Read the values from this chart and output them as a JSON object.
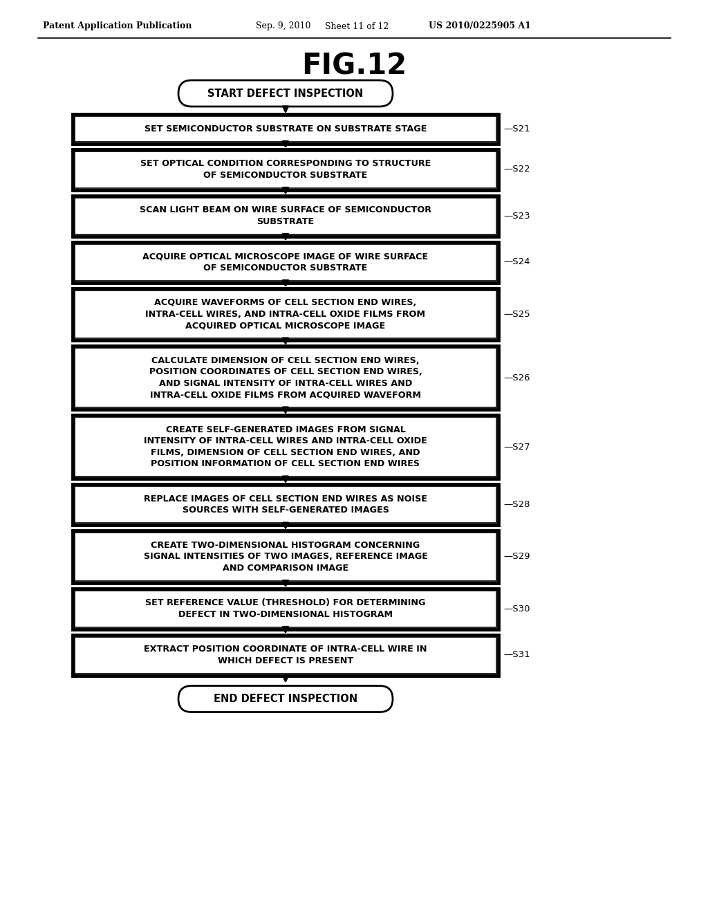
{
  "title": "FIG.12",
  "header_left": "Patent Application Publication",
  "header_mid": "Sep. 9, 2010   Sheet 11 of 12",
  "header_right": "US 2010/0225905 A1",
  "background_color": "#ffffff",
  "text_color": "#000000",
  "start_label": "START DEFECT INSPECTION",
  "end_label": "END DEFECT INSPECTION",
  "fig_width": 10.24,
  "fig_height": 13.2,
  "dpi": 100,
  "steps": [
    {
      "label": "SET SEMICONDUCTOR SUBSTRATE ON SUBSTRATE STAGE",
      "step": "S21",
      "nlines": 1
    },
    {
      "label": "SET OPTICAL CONDITION CORRESPONDING TO STRUCTURE\nOF SEMICONDUCTOR SUBSTRATE",
      "step": "S22",
      "nlines": 2
    },
    {
      "label": "SCAN LIGHT BEAM ON WIRE SURFACE OF SEMICONDUCTOR\nSUBSTRATE",
      "step": "S23",
      "nlines": 2
    },
    {
      "label": "ACQUIRE OPTICAL MICROSCOPE IMAGE OF WIRE SURFACE\nOF SEMICONDUCTOR SUBSTRATE",
      "step": "S24",
      "nlines": 2
    },
    {
      "label": "ACQUIRE WAVEFORMS OF CELL SECTION END WIRES,\nINTRA-CELL WIRES, AND INTRA-CELL OXIDE FILMS FROM\nACQUIRED OPTICAL MICROSCOPE IMAGE",
      "step": "S25",
      "nlines": 3
    },
    {
      "label": "CALCULATE DIMENSION OF CELL SECTION END WIRES,\nPOSITION COORDINATES OF CELL SECTION END WIRES,\nAND SIGNAL INTENSITY OF INTRA-CELL WIRES AND\nINTRA-CELL OXIDE FILMS FROM ACQUIRED WAVEFORM",
      "step": "S26",
      "nlines": 4
    },
    {
      "label": "CREATE SELF-GENERATED IMAGES FROM SIGNAL\nINTENSITY OF INTRA-CELL WIRES AND INTRA-CELL OXIDE\nFILMS, DIMENSION OF CELL SECTION END WIRES, AND\nPOSITION INFORMATION OF CELL SECTION END WIRES",
      "step": "S27",
      "nlines": 4
    },
    {
      "label": "REPLACE IMAGES OF CELL SECTION END WIRES AS NOISE\nSOURCES WITH SELF-GENERATED IMAGES",
      "step": "S28",
      "nlines": 2
    },
    {
      "label": "CREATE TWO-DIMENSIONAL HISTOGRAM CONCERNING\nSIGNAL INTENSITIES OF TWO IMAGES, REFERENCE IMAGE\nAND COMPARISON IMAGE",
      "step": "S29",
      "nlines": 3
    },
    {
      "label": "SET REFERENCE VALUE (THRESHOLD) FOR DETERMINING\nDEFECT IN TWO-DIMENSIONAL HISTOGRAM",
      "step": "S30",
      "nlines": 2
    },
    {
      "label": "EXTRACT POSITION COORDINATE OF INTRA-CELL WIRE IN\nWHICH DEFECT IS PRESENT",
      "step": "S31",
      "nlines": 2
    }
  ]
}
